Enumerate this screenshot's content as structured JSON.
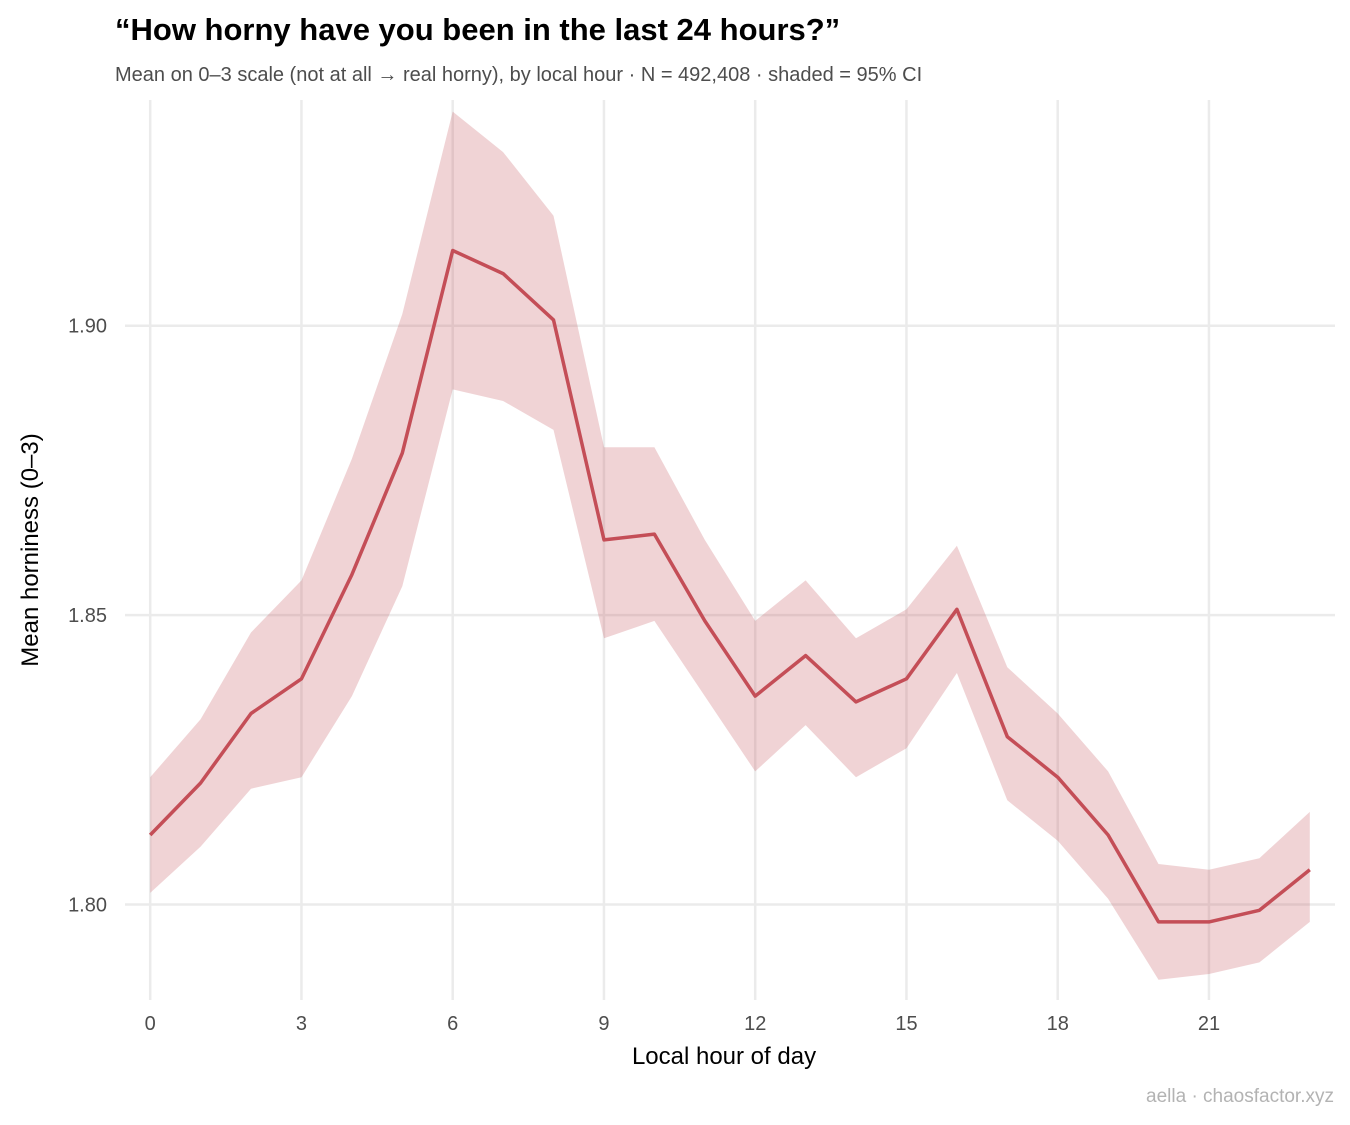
{
  "chart_data": {
    "type": "line",
    "title": "“How horny have you been in the last 24 hours?”",
    "subtitle": "Mean on 0–3 scale (not at all → real horny), by local hour · N = 492,408 · shaded = 95% CI",
    "xlabel": "Local hour of day",
    "ylabel": "Mean horniness (0–3)",
    "caption": "aella · chaosfactor.xyz",
    "xlim": [
      -0.5,
      23.5
    ],
    "ylim": [
      1.7835,
      1.939
    ],
    "x_ticks": [
      0,
      3,
      6,
      9,
      12,
      15,
      18,
      21
    ],
    "x_tick_labels": [
      "0",
      "3",
      "6",
      "9",
      "12",
      "15",
      "18",
      "21"
    ],
    "y_ticks": [
      1.8,
      1.85,
      1.9
    ],
    "y_tick_labels": [
      "1.80",
      "1.85",
      "1.90"
    ],
    "grid": true,
    "line_color": "#c44e57",
    "band_color": "#c44e57",
    "series": [
      {
        "x": [
          0,
          1,
          2,
          3,
          4,
          5,
          6,
          7,
          8,
          9,
          10,
          11,
          12,
          13,
          14,
          15,
          16,
          17,
          18,
          19,
          20,
          21,
          22,
          23
        ],
        "mean": [
          1.812,
          1.821,
          1.833,
          1.839,
          1.857,
          1.878,
          1.913,
          1.909,
          1.901,
          1.863,
          1.864,
          1.849,
          1.836,
          1.843,
          1.835,
          1.839,
          1.851,
          1.829,
          1.822,
          1.812,
          1.797,
          1.797,
          1.799,
          1.806
        ],
        "ci_low": [
          1.802,
          1.81,
          1.82,
          1.822,
          1.836,
          1.855,
          1.889,
          1.887,
          1.882,
          1.846,
          1.849,
          1.836,
          1.823,
          1.831,
          1.822,
          1.827,
          1.84,
          1.818,
          1.811,
          1.801,
          1.787,
          1.788,
          1.79,
          1.797
        ],
        "ci_high": [
          1.822,
          1.832,
          1.847,
          1.856,
          1.877,
          1.902,
          1.937,
          1.93,
          1.919,
          1.879,
          1.879,
          1.863,
          1.849,
          1.856,
          1.846,
          1.851,
          1.862,
          1.841,
          1.833,
          1.823,
          1.807,
          1.806,
          1.808,
          1.816
        ]
      }
    ]
  }
}
